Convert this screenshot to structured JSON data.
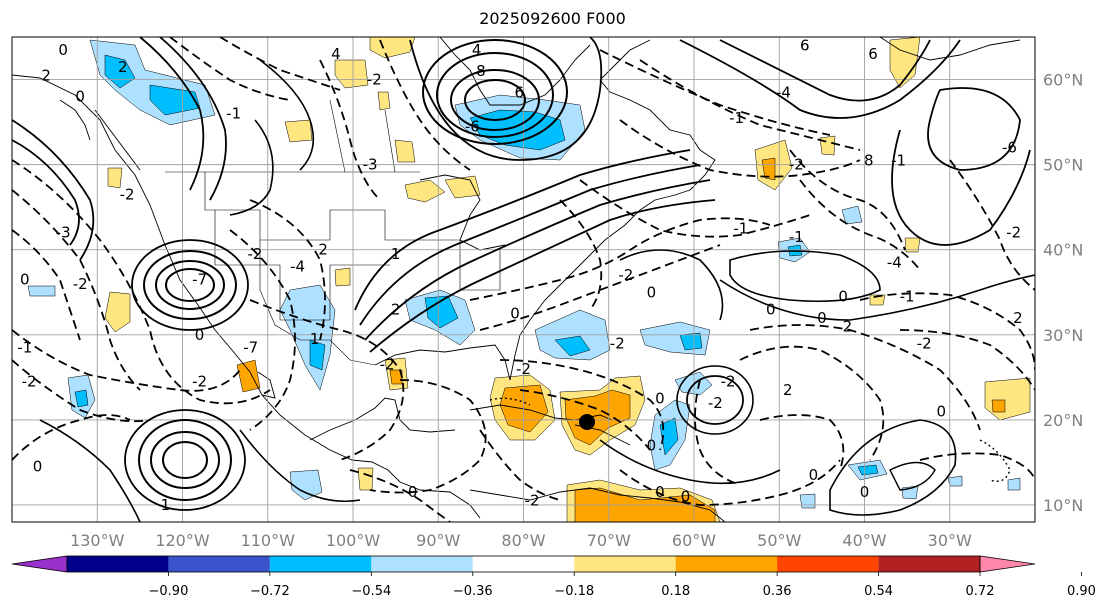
{
  "title": "2025092600 F000",
  "map": {
    "projection": "cylindrical",
    "lon_range": [
      -140,
      -20
    ],
    "lat_range": [
      8,
      65
    ],
    "grid_lines": true,
    "lon_ticks": [
      {
        "value": -130,
        "label": "130°W"
      },
      {
        "value": -120,
        "label": "120°W"
      },
      {
        "value": -110,
        "label": "110°W"
      },
      {
        "value": -100,
        "label": "100°W"
      },
      {
        "value": -90,
        "label": "90°W"
      },
      {
        "value": -80,
        "label": "80°W"
      },
      {
        "value": -70,
        "label": "70°W"
      },
      {
        "value": -60,
        "label": "60°W"
      },
      {
        "value": -50,
        "label": "50°W"
      },
      {
        "value": -40,
        "label": "40°W"
      },
      {
        "value": -30,
        "label": "30°W"
      }
    ],
    "lat_ticks": [
      {
        "value": 60,
        "label": "60°N"
      },
      {
        "value": 50,
        "label": "50°N"
      },
      {
        "value": 40,
        "label": "40°N"
      },
      {
        "value": 30,
        "label": "30°N"
      },
      {
        "value": 20,
        "label": "20°N"
      },
      {
        "value": 10,
        "label": "10°N"
      }
    ],
    "contour_labels": [
      {
        "text": "0",
        "lon": -134,
        "lat": 63.5
      },
      {
        "text": "2",
        "lon": -127,
        "lat": 61.5
      },
      {
        "text": "2",
        "lon": -136,
        "lat": 60.5
      },
      {
        "text": "0",
        "lon": -132,
        "lat": 58
      },
      {
        "text": "4",
        "lon": -102,
        "lat": 63
      },
      {
        "text": "-3",
        "lon": -98,
        "lat": 50
      },
      {
        "text": "-3",
        "lon": -134,
        "lat": 42
      },
      {
        "text": "-2",
        "lon": -132,
        "lat": 36
      },
      {
        "text": "0",
        "lon": -138.5,
        "lat": 36.5
      },
      {
        "text": "-1",
        "lon": -138.5,
        "lat": 28.5
      },
      {
        "text": "-2",
        "lon": -138,
        "lat": 24.5
      },
      {
        "text": "0",
        "lon": -137,
        "lat": 14.5
      },
      {
        "text": "1",
        "lon": -122,
        "lat": 10
      },
      {
        "text": "-2",
        "lon": -118,
        "lat": 24.5
      },
      {
        "text": "0",
        "lon": -118,
        "lat": 30
      },
      {
        "text": "-7",
        "lon": -118,
        "lat": 36.5
      },
      {
        "text": "-4",
        "lon": -106.5,
        "lat": 38
      },
      {
        "text": "-2",
        "lon": -111.5,
        "lat": 39.5
      },
      {
        "text": "2",
        "lon": -103.5,
        "lat": 40
      },
      {
        "text": "8",
        "lon": -85,
        "lat": 61
      },
      {
        "text": "4",
        "lon": -85.5,
        "lat": 63.5
      },
      {
        "text": "6",
        "lon": -80.5,
        "lat": 58.5
      },
      {
        "text": "-6",
        "lon": -86,
        "lat": 54.5
      },
      {
        "text": "1",
        "lon": -95,
        "lat": 39.5
      },
      {
        "text": "2",
        "lon": -95,
        "lat": 33
      },
      {
        "text": "-2",
        "lon": -96,
        "lat": 26.5
      },
      {
        "text": "0",
        "lon": -81,
        "lat": 32.5
      },
      {
        "text": "-2",
        "lon": -80,
        "lat": 26
      },
      {
        "text": "-2",
        "lon": -69,
        "lat": 29
      },
      {
        "text": "-2",
        "lon": -56,
        "lat": 24.5
      },
      {
        "text": "-2",
        "lon": -57.5,
        "lat": 22
      },
      {
        "text": "0",
        "lon": -64,
        "lat": 22.5
      },
      {
        "text": "0",
        "lon": -65,
        "lat": 17
      },
      {
        "text": "2",
        "lon": -49,
        "lat": 23.5
      },
      {
        "text": "0",
        "lon": -61,
        "lat": 11
      },
      {
        "text": "0",
        "lon": -64,
        "lat": 11.5
      },
      {
        "text": "-2",
        "lon": -79,
        "lat": 10.5
      },
      {
        "text": "0",
        "lon": -93,
        "lat": 11.5
      },
      {
        "text": "0",
        "lon": -46,
        "lat": 13.5
      },
      {
        "text": "0",
        "lon": -40,
        "lat": 11.5
      },
      {
        "text": "-2",
        "lon": -33,
        "lat": 29
      },
      {
        "text": "0",
        "lon": -31,
        "lat": 21
      },
      {
        "text": "0",
        "lon": -45,
        "lat": 32
      },
      {
        "text": "0",
        "lon": -51,
        "lat": 33
      },
      {
        "text": "2",
        "lon": -42,
        "lat": 31
      },
      {
        "text": "-1",
        "lon": -35,
        "lat": 34.5
      },
      {
        "text": "0",
        "lon": -42.5,
        "lat": 34.5
      },
      {
        "text": "2",
        "lon": -22,
        "lat": 32
      },
      {
        "text": "-2",
        "lon": -22.5,
        "lat": 42
      },
      {
        "text": "-4",
        "lon": -36.5,
        "lat": 38.5
      },
      {
        "text": "-6",
        "lon": -23,
        "lat": 52
      },
      {
        "text": "8",
        "lon": -39.5,
        "lat": 50.5
      },
      {
        "text": "-4",
        "lon": -49.5,
        "lat": 58.5
      },
      {
        "text": "6",
        "lon": -47,
        "lat": 64
      },
      {
        "text": "6",
        "lon": -39,
        "lat": 63
      },
      {
        "text": "-1",
        "lon": -55,
        "lat": 55.5
      },
      {
        "text": "-2",
        "lon": -48,
        "lat": 50
      },
      {
        "text": "-1",
        "lon": -36,
        "lat": 50.5
      },
      {
        "text": "-1",
        "lon": -48,
        "lat": 41.5
      },
      {
        "text": "-1",
        "lon": -54.5,
        "lat": 42.5
      },
      {
        "text": "0",
        "lon": -65,
        "lat": 35
      },
      {
        "text": "-2",
        "lon": -68,
        "lat": 37
      },
      {
        "text": "-2",
        "lon": -97.5,
        "lat": 60
      },
      {
        "text": "-1",
        "lon": -114,
        "lat": 56
      },
      {
        "text": "-2",
        "lon": -126.5,
        "lat": 46.5
      },
      {
        "text": "1",
        "lon": -104.5,
        "lat": 29.5
      },
      {
        "text": "-7",
        "lon": -112,
        "lat": 28.5
      }
    ],
    "colors": {
      "land": "#ffffff",
      "coast": "#000000",
      "grid": "#a0a0a0",
      "shade_light_blue": "#aee0ff",
      "shade_blue": "#00bfff",
      "shade_yellow": "#ffe680",
      "shade_orange": "#ffa500"
    }
  },
  "colorbar": {
    "tick_labels": [
      "−0.90",
      "−0.72",
      "−0.54",
      "−0.36",
      "−0.18",
      "0.18",
      "0.36",
      "0.54",
      "0.72",
      "0.90"
    ],
    "colors": [
      "#9932cc",
      "#00008b",
      "#3a55cc",
      "#00bfff",
      "#aee0ff",
      "#ffffff",
      "#ffe680",
      "#ffa500",
      "#ff4500",
      "#b22222",
      "#ff88aa"
    ]
  }
}
